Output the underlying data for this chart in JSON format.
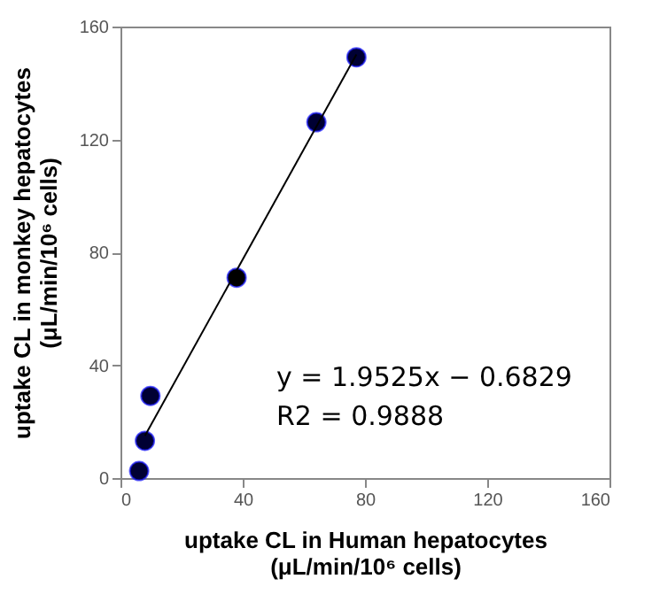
{
  "chart_data": {
    "type": "scatter",
    "xlabel": "uptake CL in Human hepatocytes\n(μL/min/10⁶ cells)",
    "ylabel": "uptake CL in monkey hepatocytes\n(μL/min/10⁶ cells)",
    "series": [
      {
        "colors": [
          "#000033",
          "#000033",
          "#000033",
          "#000000",
          "#000033",
          "#000033"
        ],
        "x": [
          6.1,
          8.0,
          9.8,
          38.0,
          64.1,
          77.2
        ],
        "values": [
          2.5,
          13.2,
          29.1,
          71.0,
          126.1,
          149.1
        ],
        "marker": "circle"
      },
      {
        "type": "line",
        "color": "#000000",
        "x": [
          8.0,
          77.2
        ],
        "values": [
          15.0,
          150.1
        ],
        "line_style": "solid"
      }
    ],
    "annotations": [
      "y = 1.9525x − 0.6829",
      "R2 = 0.9888"
    ],
    "xlim": [
      0,
      160
    ],
    "xticks": [
      0,
      40,
      80,
      120,
      160
    ],
    "ylim": [
      0,
      160
    ],
    "yticks": [
      0,
      40,
      80,
      120,
      160
    ],
    "grid": false
  }
}
